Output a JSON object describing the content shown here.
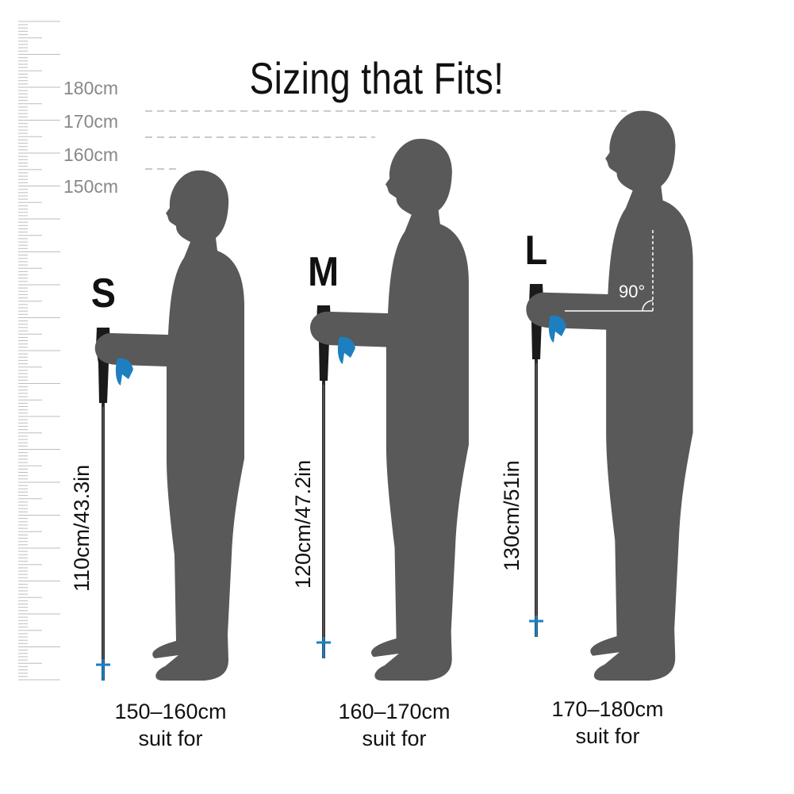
{
  "title": "Sizing that Fits!",
  "ruler": {
    "labels": [
      "180cm",
      "170cm",
      "160cm",
      "150cm"
    ]
  },
  "sizes": [
    {
      "letter": "S",
      "pole_length": "110cm/43.3in",
      "height_range": "150–160cm",
      "suit": "suit for"
    },
    {
      "letter": "M",
      "pole_length": "120cm/47.2in",
      "height_range": "160–170cm",
      "suit": "suit for"
    },
    {
      "letter": "L",
      "pole_length": "130cm/51in",
      "height_range": "170–180cm",
      "suit": "suit for"
    }
  ],
  "angle_label": "90°",
  "colors": {
    "silhouette": "#595959",
    "strap": "#1e7fc0",
    "grip": "#1a1a1a",
    "ruler": "#bdbdbd"
  }
}
